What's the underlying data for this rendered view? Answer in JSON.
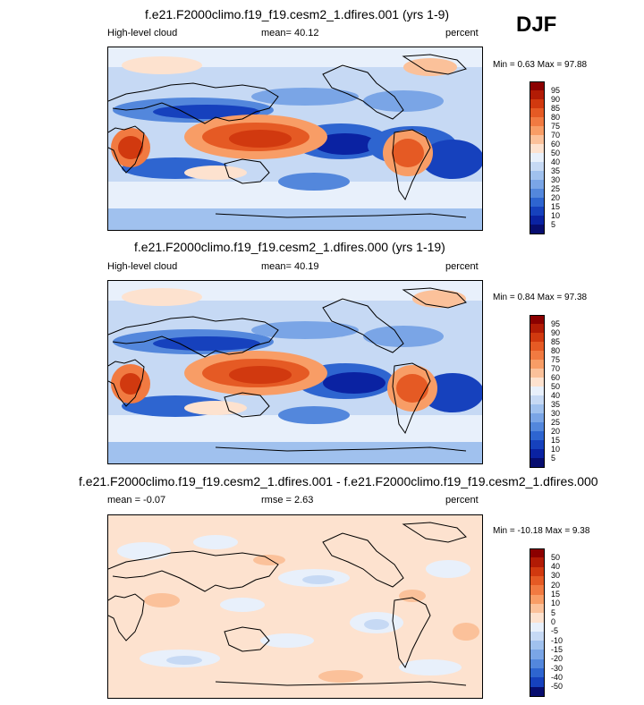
{
  "season": "DJF",
  "panels": [
    {
      "title": "f.e21.F2000climo.f19_f19.cesm2_1.dfires.001 (yrs 1-9)",
      "left_label": "High-level cloud",
      "center_label": "mean=  40.12",
      "right_label": "percent",
      "minmax": "Min =   0.63 Max =  97.88",
      "colorbar": {
        "labels": [
          "95",
          "90",
          "85",
          "80",
          "75",
          "70",
          "60",
          "50",
          "40",
          "35",
          "30",
          "25",
          "20",
          "15",
          "10",
          "5"
        ],
        "colors": [
          "#8b0000",
          "#b21b05",
          "#d1390f",
          "#e55a24",
          "#f17a41",
          "#f89d66",
          "#fbc19a",
          "#fde2cf",
          "#e8f0fb",
          "#c6d9f4",
          "#a0c1ee",
          "#7aa5e6",
          "#5387dc",
          "#2e65d0",
          "#1641bd",
          "#0a22a2",
          "#070d6f"
        ]
      }
    },
    {
      "title": "f.e21.F2000climo.f19_f19.cesm2_1.dfires.000 (yrs 1-19)",
      "left_label": "High-level cloud",
      "center_label": "mean=  40.19",
      "right_label": "percent",
      "minmax": "Min =   0.84 Max =  97.38",
      "colorbar": {
        "labels": [
          "95",
          "90",
          "85",
          "80",
          "75",
          "70",
          "60",
          "50",
          "40",
          "35",
          "30",
          "25",
          "20",
          "15",
          "10",
          "5"
        ],
        "colors": [
          "#8b0000",
          "#b21b05",
          "#d1390f",
          "#e55a24",
          "#f17a41",
          "#f89d66",
          "#fbc19a",
          "#fde2cf",
          "#e8f0fb",
          "#c6d9f4",
          "#a0c1ee",
          "#7aa5e6",
          "#5387dc",
          "#2e65d0",
          "#1641bd",
          "#0a22a2",
          "#070d6f"
        ]
      }
    },
    {
      "title": "f.e21.F2000climo.f19_f19.cesm2_1.dfires.001 - f.e21.F2000climo.f19_f19.cesm2_1.dfires.000",
      "left_label": "mean = -0.07",
      "center_label": "rmse =   2.63",
      "right_label": "percent",
      "minmax": "Min = -10.18 Max =   9.38",
      "colorbar": {
        "labels": [
          "50",
          "40",
          "30",
          "20",
          "15",
          "10",
          "5",
          "0",
          "-5",
          "-10",
          "-15",
          "-20",
          "-30",
          "-40",
          "-50"
        ],
        "colors": [
          "#8b0000",
          "#b21b05",
          "#d1390f",
          "#e55a24",
          "#f17a41",
          "#f89d66",
          "#fbc19a",
          "#fde2cf",
          "#e8f0fb",
          "#c6d9f4",
          "#a0c1ee",
          "#7aa5e6",
          "#5387dc",
          "#2e65d0",
          "#1641bd",
          "#070d6f"
        ]
      }
    }
  ]
}
